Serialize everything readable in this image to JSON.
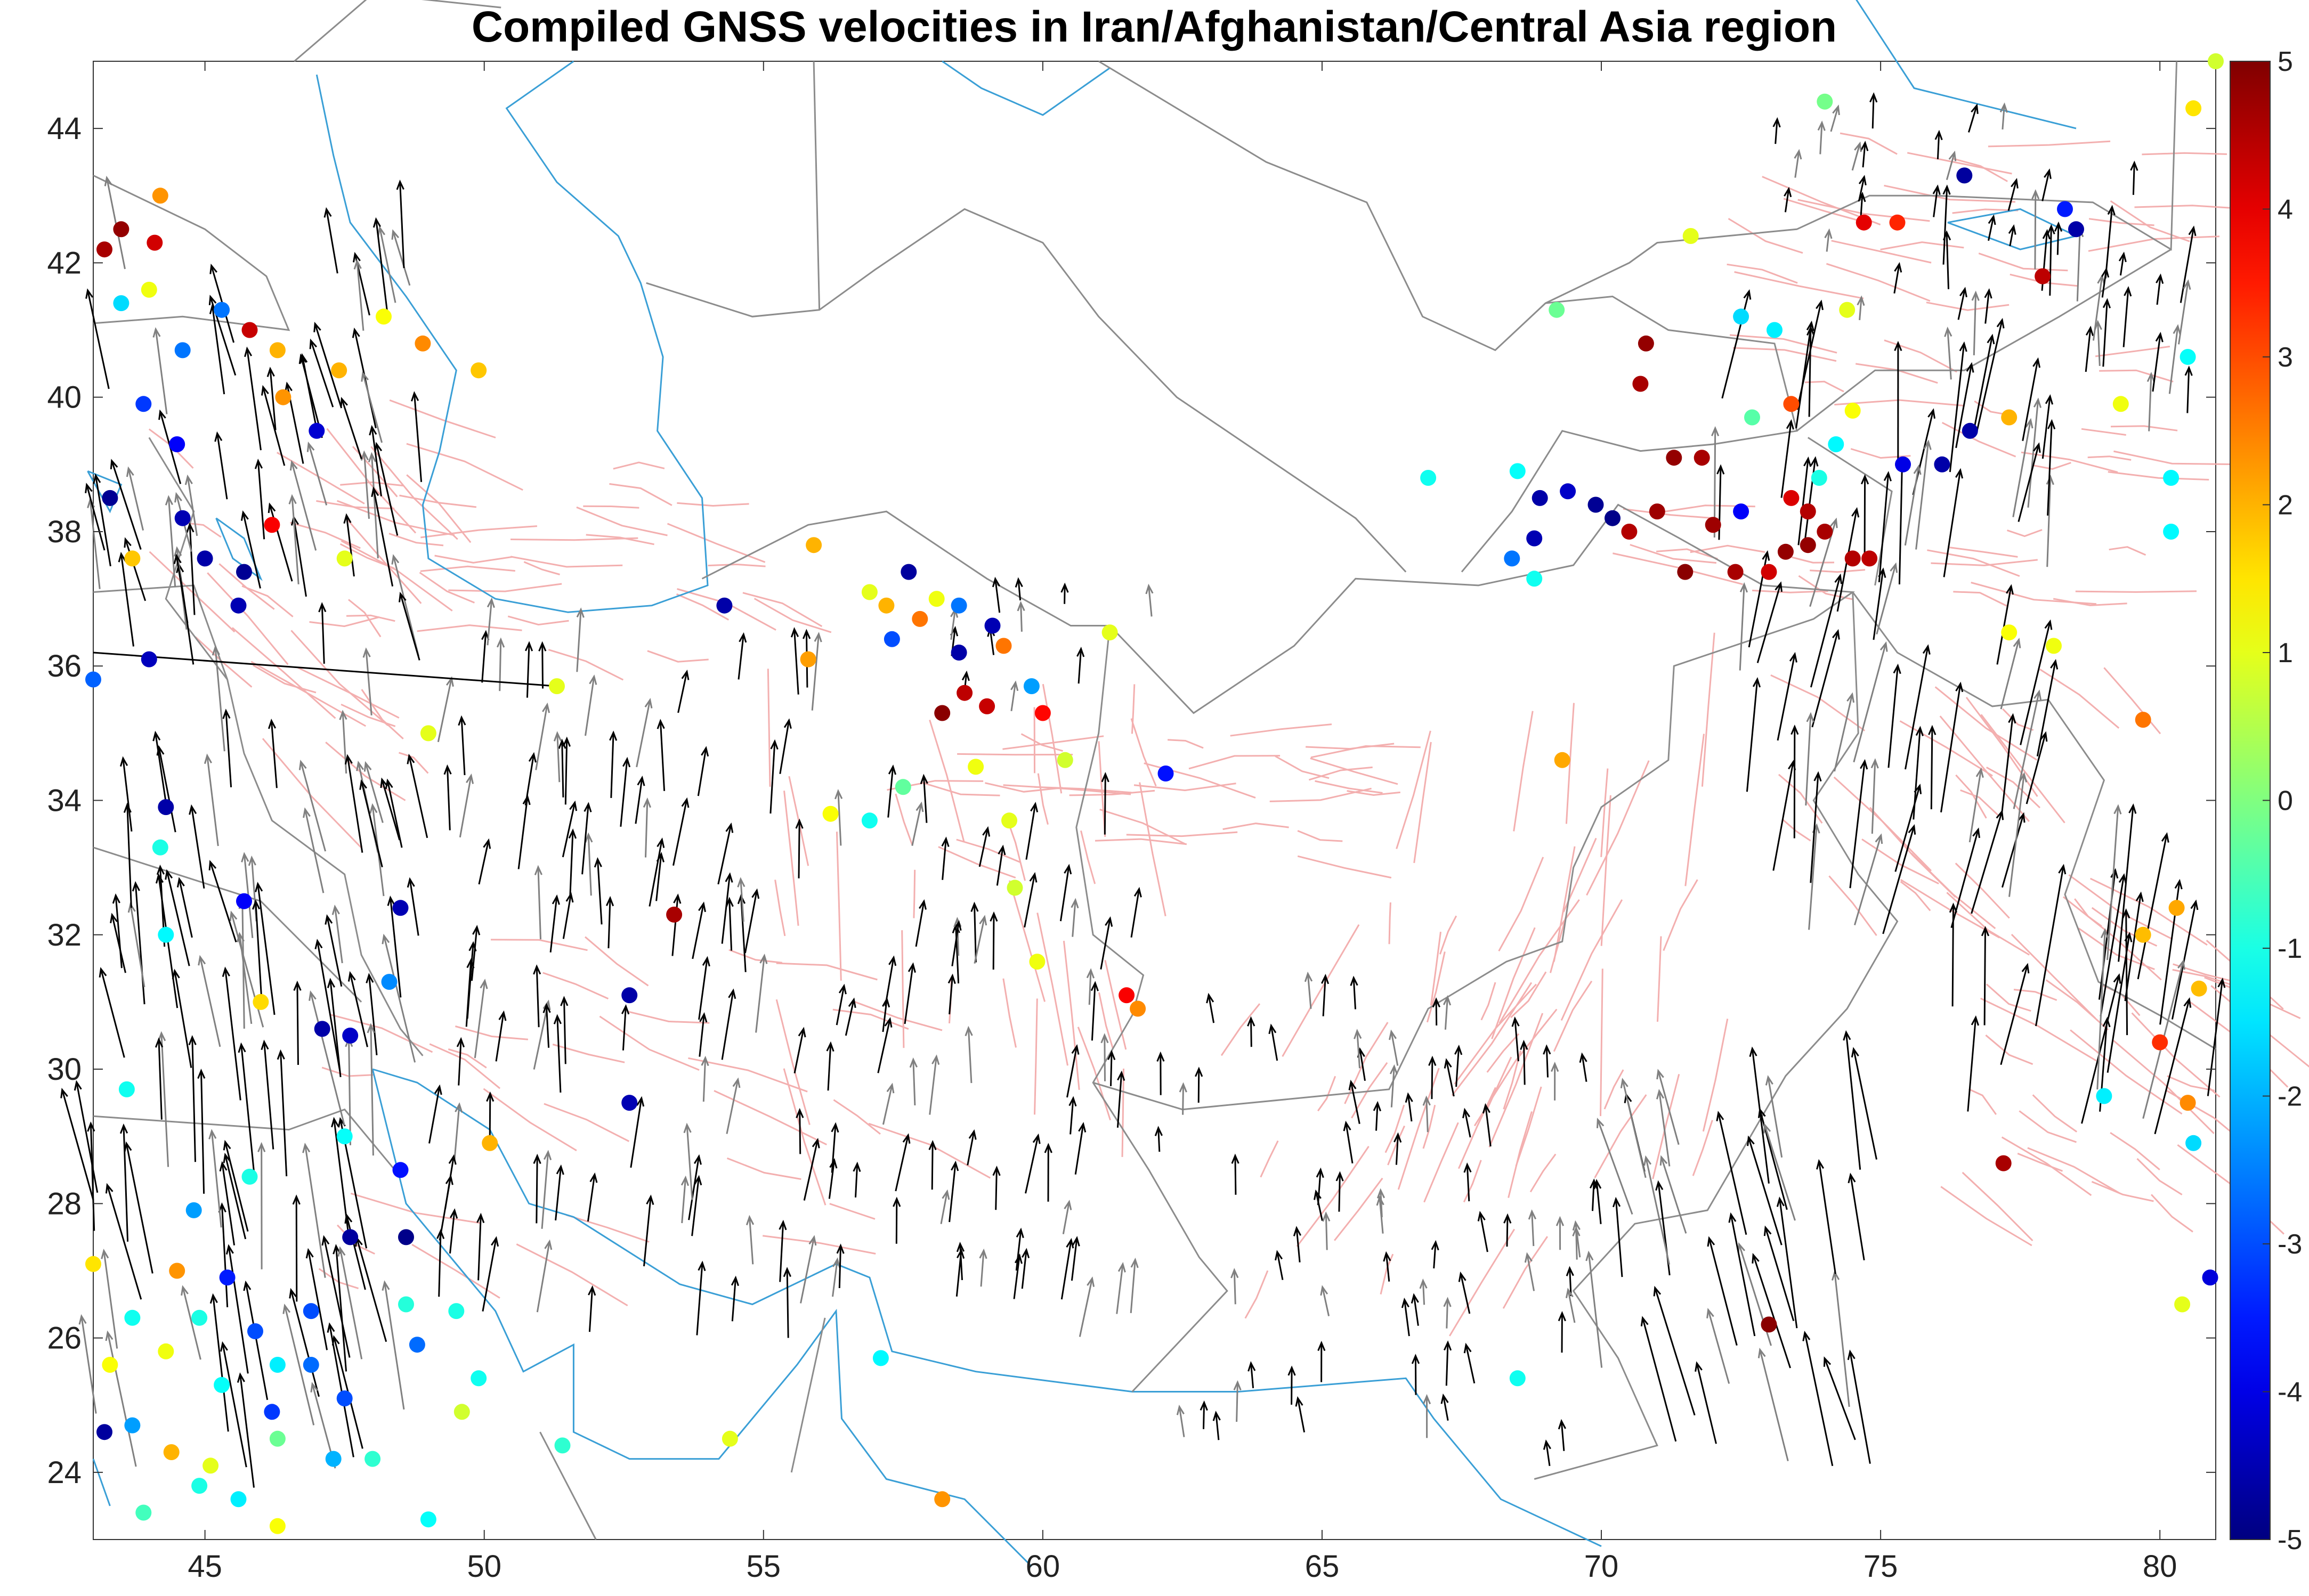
{
  "title": "Compiled GNSS velocities in Iran/Afghanistan/Central Asia region",
  "map": {
    "lon_range": [
      43,
      81
    ],
    "lat_range": [
      23,
      45
    ],
    "x_ticks": [
      45,
      50,
      55,
      60,
      65,
      70,
      75,
      80
    ],
    "y_ticks": [
      24,
      26,
      28,
      30,
      32,
      34,
      36,
      38,
      40,
      42,
      44
    ],
    "x_tick_labels": [
      "45",
      "50",
      "55",
      "60",
      "65",
      "70",
      "75",
      "80"
    ],
    "y_tick_labels": [
      "24",
      "26",
      "28",
      "30",
      "32",
      "34",
      "36",
      "38",
      "40",
      "42",
      "44"
    ],
    "colors": {
      "coastline": "#3a9fd6",
      "border": "#8c8c8c",
      "fault": "#f2a7a7",
      "arrow": "#000000",
      "arrow_secondary": "#808080"
    }
  },
  "colorbar": {
    "range": [
      -5,
      5
    ],
    "tick_labels": [
      "5",
      "4",
      "3",
      "2",
      "1",
      "0",
      "-1",
      "-2",
      "-3",
      "-4",
      "-5"
    ],
    "colormap": "jet"
  },
  "sites": [
    {
      "lon": 43.2,
      "lat": 42.2,
      "v": 4.6
    },
    {
      "lon": 43.5,
      "lat": 42.5,
      "v": 4.8
    },
    {
      "lon": 44.2,
      "lat": 43.0,
      "v": 2.3
    },
    {
      "lon": 44.1,
      "lat": 42.3,
      "v": 4.2
    },
    {
      "lon": 44.0,
      "lat": 41.6,
      "v": 1.1
    },
    {
      "lon": 43.5,
      "lat": 41.4,
      "v": -1.6
    },
    {
      "lon": 45.3,
      "lat": 41.3,
      "v": -2.6
    },
    {
      "lon": 45.8,
      "lat": 41.0,
      "v": 4.3
    },
    {
      "lon": 44.6,
      "lat": 40.7,
      "v": -2.6
    },
    {
      "lon": 46.3,
      "lat": 40.7,
      "v": 2.0
    },
    {
      "lon": 47.4,
      "lat": 40.4,
      "v": 2.0
    },
    {
      "lon": 46.4,
      "lat": 40.0,
      "v": 2.3
    },
    {
      "lon": 43.9,
      "lat": 39.9,
      "v": -3.2
    },
    {
      "lon": 44.5,
      "lat": 39.3,
      "v": -3.8
    },
    {
      "lon": 43.3,
      "lat": 38.5,
      "v": -4.8
    },
    {
      "lon": 44.6,
      "lat": 38.2,
      "v": -4.5
    },
    {
      "lon": 46.2,
      "lat": 38.1,
      "v": 3.8
    },
    {
      "lon": 47.0,
      "lat": 39.5,
      "v": -4.2
    },
    {
      "lon": 45.0,
      "lat": 37.6,
      "v": -4.6
    },
    {
      "lon": 45.7,
      "lat": 37.4,
      "v": -4.8
    },
    {
      "lon": 45.6,
      "lat": 36.9,
      "v": -4.5
    },
    {
      "lon": 43.7,
      "lat": 37.6,
      "v": 1.8
    },
    {
      "lon": 43.0,
      "lat": 35.8,
      "v": -2.8
    },
    {
      "lon": 44.0,
      "lat": 36.1,
      "v": -4.4
    },
    {
      "lon": 44.3,
      "lat": 33.9,
      "v": -4.6
    },
    {
      "lon": 44.2,
      "lat": 33.3,
      "v": -1.0
    },
    {
      "lon": 45.7,
      "lat": 32.5,
      "v": -3.8
    },
    {
      "lon": 44.3,
      "lat": 32.0,
      "v": -1.3
    },
    {
      "lon": 47.1,
      "lat": 30.6,
      "v": -4.6
    },
    {
      "lon": 47.6,
      "lat": 30.5,
      "v": -4.3
    },
    {
      "lon": 48.3,
      "lat": 31.3,
      "v": -2.4
    },
    {
      "lon": 48.5,
      "lat": 32.4,
      "v": -4.5
    },
    {
      "lon": 46.0,
      "lat": 31.0,
      "v": 1.6
    },
    {
      "lon": 43.6,
      "lat": 29.7,
      "v": -1.1
    },
    {
      "lon": 47.5,
      "lat": 29.0,
      "v": -1.2
    },
    {
      "lon": 48.5,
      "lat": 28.5,
      "v": -3.6
    },
    {
      "lon": 44.8,
      "lat": 27.9,
      "v": -2.2
    },
    {
      "lon": 45.8,
      "lat": 28.4,
      "v": -1.0
    },
    {
      "lon": 47.6,
      "lat": 27.5,
      "v": -4.7
    },
    {
      "lon": 48.6,
      "lat": 27.5,
      "v": -4.9
    },
    {
      "lon": 43.0,
      "lat": 27.1,
      "v": 1.5
    },
    {
      "lon": 44.5,
      "lat": 27.0,
      "v": 2.3
    },
    {
      "lon": 45.4,
      "lat": 26.9,
      "v": -3.5
    },
    {
      "lon": 43.7,
      "lat": 26.3,
      "v": -1.1
    },
    {
      "lon": 44.9,
      "lat": 26.3,
      "v": -1.0
    },
    {
      "lon": 45.9,
      "lat": 26.1,
      "v": -3.0
    },
    {
      "lon": 46.9,
      "lat": 26.4,
      "v": -3.0
    },
    {
      "lon": 43.3,
      "lat": 25.6,
      "v": 1.2
    },
    {
      "lon": 44.3,
      "lat": 25.8,
      "v": 1.1
    },
    {
      "lon": 46.3,
      "lat": 25.6,
      "v": -1.4
    },
    {
      "lon": 46.9,
      "lat": 25.6,
      "v": -2.7
    },
    {
      "lon": 47.5,
      "lat": 25.1,
      "v": -3.0
    },
    {
      "lon": 45.3,
      "lat": 25.3,
      "v": -1.2
    },
    {
      "lon": 46.2,
      "lat": 24.9,
      "v": -3.2
    },
    {
      "lon": 43.2,
      "lat": 24.6,
      "v": -4.7
    },
    {
      "lon": 43.7,
      "lat": 24.7,
      "v": -2.2
    },
    {
      "lon": 44.4,
      "lat": 24.3,
      "v": 2.0
    },
    {
      "lon": 45.1,
      "lat": 24.1,
      "v": 1.0
    },
    {
      "lon": 46.3,
      "lat": 24.5,
      "v": -0.2
    },
    {
      "lon": 47.3,
      "lat": 24.2,
      "v": -2.0
    },
    {
      "lon": 48.0,
      "lat": 24.2,
      "v": -0.8
    },
    {
      "lon": 44.9,
      "lat": 23.8,
      "v": -1.0
    },
    {
      "lon": 45.6,
      "lat": 23.6,
      "v": -1.4
    },
    {
      "lon": 46.3,
      "lat": 23.2,
      "v": 1.2
    },
    {
      "lon": 43.9,
      "lat": 23.4,
      "v": -0.6
    },
    {
      "lon": 49.0,
      "lat": 23.3,
      "v": -1.2
    },
    {
      "lon": 48.6,
      "lat": 26.5,
      "v": -0.9
    },
    {
      "lon": 48.8,
      "lat": 25.9,
      "v": -2.7
    },
    {
      "lon": 49.5,
      "lat": 26.4,
      "v": -1.0
    },
    {
      "lon": 49.9,
      "lat": 25.4,
      "v": -1.1
    },
    {
      "lon": 49.6,
      "lat": 24.9,
      "v": 0.8
    },
    {
      "lon": 51.4,
      "lat": 24.4,
      "v": -0.8
    },
    {
      "lon": 49.9,
      "lat": 40.4,
      "v": 1.8
    },
    {
      "lon": 48.9,
      "lat": 40.8,
      "v": 2.4
    },
    {
      "lon": 47.5,
      "lat": 37.6,
      "v": 1.0
    },
    {
      "lon": 48.2,
      "lat": 41.2,
      "v": 1.2
    },
    {
      "lon": 51.3,
      "lat": 35.7,
      "v": 1.0
    },
    {
      "lon": 49.0,
      "lat": 35.0,
      "v": 1.0
    },
    {
      "lon": 50.1,
      "lat": 28.9,
      "v": 2.0
    },
    {
      "lon": 52.6,
      "lat": 29.5,
      "v": -4.5
    },
    {
      "lon": 52.6,
      "lat": 31.1,
      "v": -4.6
    },
    {
      "lon": 53.4,
      "lat": 32.3,
      "v": 4.6
    },
    {
      "lon": 54.3,
      "lat": 36.9,
      "v": -4.6
    },
    {
      "lon": 55.9,
      "lat": 37.8,
      "v": 2.0
    },
    {
      "lon": 55.8,
      "lat": 36.1,
      "v": 2.2
    },
    {
      "lon": 56.9,
      "lat": 37.1,
      "v": 1.0
    },
    {
      "lon": 57.6,
      "lat": 37.4,
      "v": -4.7
    },
    {
      "lon": 58.1,
      "lat": 37.0,
      "v": 1.1
    },
    {
      "lon": 57.2,
      "lat": 36.9,
      "v": 2.0
    },
    {
      "lon": 57.3,
      "lat": 36.4,
      "v": -3.0
    },
    {
      "lon": 57.8,
      "lat": 36.7,
      "v": 2.6
    },
    {
      "lon": 58.5,
      "lat": 36.9,
      "v": -2.6
    },
    {
      "lon": 59.1,
      "lat": 36.6,
      "v": -4.5
    },
    {
      "lon": 58.5,
      "lat": 36.2,
      "v": -4.6
    },
    {
      "lon": 59.3,
      "lat": 36.3,
      "v": 2.6
    },
    {
      "lon": 58.2,
      "lat": 35.3,
      "v": 4.9
    },
    {
      "lon": 58.6,
      "lat": 35.6,
      "v": 4.4
    },
    {
      "lon": 59.0,
      "lat": 35.4,
      "v": 4.3
    },
    {
      "lon": 60.0,
      "lat": 35.3,
      "v": 3.7
    },
    {
      "lon": 59.8,
      "lat": 35.7,
      "v": -2.2
    },
    {
      "lon": 60.4,
      "lat": 34.6,
      "v": 0.8
    },
    {
      "lon": 61.2,
      "lat": 36.5,
      "v": 1.0
    },
    {
      "lon": 58.8,
      "lat": 34.5,
      "v": 1.1
    },
    {
      "lon": 57.5,
      "lat": 34.2,
      "v": -0.3
    },
    {
      "lon": 56.2,
      "lat": 33.8,
      "v": 1.2
    },
    {
      "lon": 56.9,
      "lat": 33.7,
      "v": -1.1
    },
    {
      "lon": 59.4,
      "lat": 33.7,
      "v": 1.0
    },
    {
      "lon": 59.5,
      "lat": 32.7,
      "v": 0.8
    },
    {
      "lon": 62.2,
      "lat": 34.4,
      "v": -3.6
    },
    {
      "lon": 59.9,
      "lat": 31.6,
      "v": 1.1
    },
    {
      "lon": 61.5,
      "lat": 31.1,
      "v": 3.8
    },
    {
      "lon": 61.7,
      "lat": 30.9,
      "v": 2.4
    },
    {
      "lon": 57.1,
      "lat": 25.7,
      "v": -1.3
    },
    {
      "lon": 58.2,
      "lat": 23.6,
      "v": 2.3
    },
    {
      "lon": 54.4,
      "lat": 24.5,
      "v": 1.0
    },
    {
      "lon": 66.9,
      "lat": 38.8,
      "v": -1.1
    },
    {
      "lon": 69.3,
      "lat": 34.6,
      "v": 2.1
    },
    {
      "lon": 70.8,
      "lat": 40.8,
      "v": 4.8
    },
    {
      "lon": 70.7,
      "lat": 40.2,
      "v": 4.6
    },
    {
      "lon": 69.2,
      "lat": 41.3,
      "v": -0.2
    },
    {
      "lon": 68.5,
      "lat": 38.9,
      "v": -1.2
    },
    {
      "lon": 68.9,
      "lat": 38.5,
      "v": -4.6
    },
    {
      "lon": 69.4,
      "lat": 38.6,
      "v": -4.3
    },
    {
      "lon": 69.9,
      "lat": 38.4,
      "v": -4.8
    },
    {
      "lon": 70.2,
      "lat": 38.2,
      "v": -4.9
    },
    {
      "lon": 70.5,
      "lat": 38.0,
      "v": 4.5
    },
    {
      "lon": 71.0,
      "lat": 38.3,
      "v": 4.7
    },
    {
      "lon": 71.3,
      "lat": 39.1,
      "v": 4.8
    },
    {
      "lon": 71.8,
      "lat": 39.1,
      "v": 4.6
    },
    {
      "lon": 72.0,
      "lat": 38.1,
      "v": 4.7
    },
    {
      "lon": 71.5,
      "lat": 37.4,
      "v": 4.9
    },
    {
      "lon": 72.4,
      "lat": 37.4,
      "v": 4.6
    },
    {
      "lon": 72.5,
      "lat": 38.3,
      "v": -3.8
    },
    {
      "lon": 73.0,
      "lat": 37.4,
      "v": 4.2
    },
    {
      "lon": 73.4,
      "lat": 38.5,
      "v": 4.1
    },
    {
      "lon": 73.7,
      "lat": 38.3,
      "v": 4.5
    },
    {
      "lon": 74.0,
      "lat": 38.0,
      "v": 4.6
    },
    {
      "lon": 74.5,
      "lat": 37.6,
      "v": 4.5
    },
    {
      "lon": 73.3,
      "lat": 37.7,
      "v": 4.8
    },
    {
      "lon": 73.7,
      "lat": 37.8,
      "v": 4.8
    },
    {
      "lon": 74.8,
      "lat": 37.6,
      "v": 4.4
    },
    {
      "lon": 68.4,
      "lat": 37.6,
      "v": -2.6
    },
    {
      "lon": 68.8,
      "lat": 37.3,
      "v": -1.1
    },
    {
      "lon": 68.8,
      "lat": 37.9,
      "v": -4.5
    },
    {
      "lon": 73.4,
      "lat": 39.9,
      "v": 3.0
    },
    {
      "lon": 72.7,
      "lat": 39.7,
      "v": -0.4
    },
    {
      "lon": 73.9,
      "lat": 38.8,
      "v": -1.0
    },
    {
      "lon": 74.2,
      "lat": 39.3,
      "v": -1.3
    },
    {
      "lon": 74.5,
      "lat": 39.8,
      "v": 1.2
    },
    {
      "lon": 73.1,
      "lat": 41.0,
      "v": -1.4
    },
    {
      "lon": 74.4,
      "lat": 41.3,
      "v": 1.0
    },
    {
      "lon": 75.4,
      "lat": 39.0,
      "v": -4.0
    },
    {
      "lon": 76.1,
      "lat": 39.0,
      "v": -4.6
    },
    {
      "lon": 76.6,
      "lat": 39.5,
      "v": -4.6
    },
    {
      "lon": 77.3,
      "lat": 39.7,
      "v": 2.0
    },
    {
      "lon": 75.3,
      "lat": 42.6,
      "v": 3.4
    },
    {
      "lon": 74.7,
      "lat": 42.6,
      "v": 4.0
    },
    {
      "lon": 72.5,
      "lat": 41.2,
      "v": -1.6
    },
    {
      "lon": 71.6,
      "lat": 42.4,
      "v": 1.0
    },
    {
      "lon": 76.5,
      "lat": 43.3,
      "v": -4.7
    },
    {
      "lon": 77.9,
      "lat": 41.8,
      "v": 4.4
    },
    {
      "lon": 78.5,
      "lat": 42.5,
      "v": -4.6
    },
    {
      "lon": 78.3,
      "lat": 42.8,
      "v": -3.5
    },
    {
      "lon": 80.5,
      "lat": 40.6,
      "v": -1.2
    },
    {
      "lon": 79.3,
      "lat": 39.9,
      "v": 1.1
    },
    {
      "lon": 80.2,
      "lat": 38.8,
      "v": -1.3
    },
    {
      "lon": 80.2,
      "lat": 38.0,
      "v": -1.3
    },
    {
      "lon": 77.3,
      "lat": 36.5,
      "v": 1.2
    },
    {
      "lon": 78.1,
      "lat": 36.3,
      "v": 1.1
    },
    {
      "lon": 79.7,
      "lat": 35.2,
      "v": 2.6
    },
    {
      "lon": 80.3,
      "lat": 32.4,
      "v": 2.1
    },
    {
      "lon": 79.7,
      "lat": 32.0,
      "v": 1.9
    },
    {
      "lon": 77.2,
      "lat": 28.6,
      "v": 4.6
    },
    {
      "lon": 79.0,
      "lat": 29.6,
      "v": -1.4
    },
    {
      "lon": 80.6,
      "lat": 28.9,
      "v": -1.6
    },
    {
      "lon": 80.9,
      "lat": 26.9,
      "v": -4.1
    },
    {
      "lon": 80.4,
      "lat": 26.5,
      "v": 1.0
    },
    {
      "lon": 73.0,
      "lat": 26.2,
      "v": 4.9
    },
    {
      "lon": 68.5,
      "lat": 25.4,
      "v": -1.1
    },
    {
      "lon": 80.0,
      "lat": 30.4,
      "v": 3.3
    },
    {
      "lon": 80.5,
      "lat": 29.5,
      "v": 2.4
    },
    {
      "lon": 80.7,
      "lat": 31.2,
      "v": 1.9
    },
    {
      "lon": 81.0,
      "lat": 45.0,
      "v": 0.8
    },
    {
      "lon": 80.6,
      "lat": 44.3,
      "v": 1.5
    },
    {
      "lon": 74.0,
      "lat": 44.4,
      "v": -0.1
    }
  ]
}
